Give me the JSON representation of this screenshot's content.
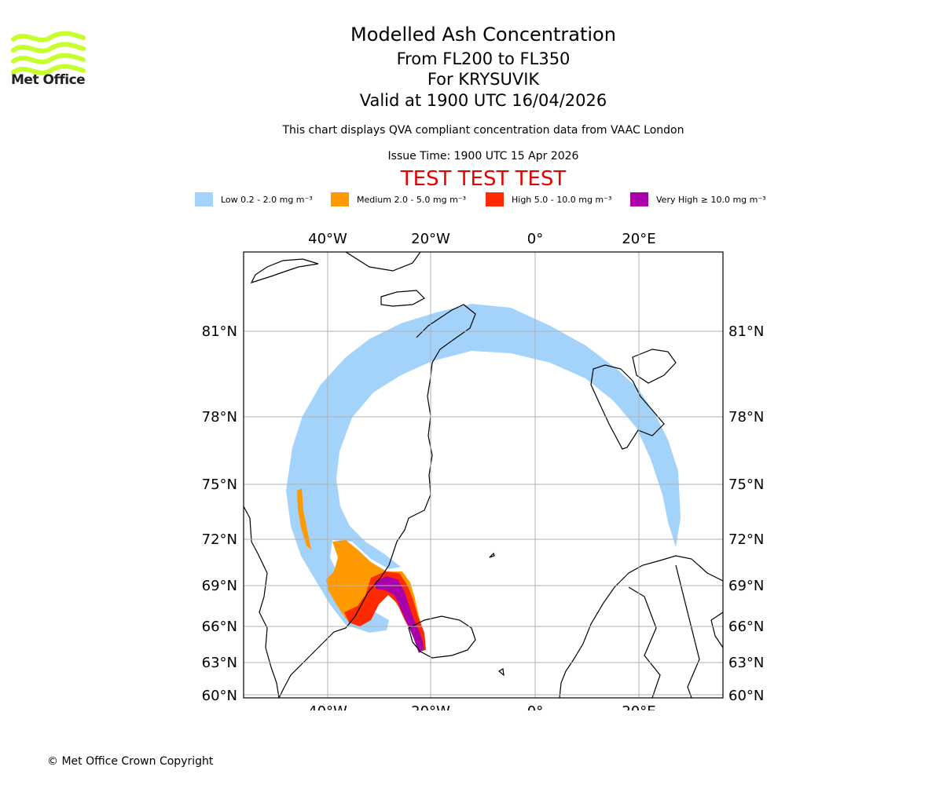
{
  "logo": {
    "name": "Met Office",
    "icon": "met-office-wave-logo",
    "color": "#c6ff2e"
  },
  "header": {
    "title": "Modelled Ash Concentration",
    "levels": "From FL200 to FL350",
    "volcano": "For KRYSUVIK",
    "valid": "Valid at 1900 UTC 16/04/2026",
    "subtitle": "This chart displays QVA compliant concentration data from VAAC London",
    "issue_time": "Issue Time: 1900 UTC 15 Apr 2026",
    "test_banner": "TEST TEST TEST"
  },
  "legend": [
    {
      "label": "Low 0.2 - 2.0 mg m⁻³",
      "color": "#a3d3fa"
    },
    {
      "label": "Medium 2.0 - 5.0 mg m⁻³",
      "color": "#ff9900"
    },
    {
      "label": "High 5.0 - 10.0 mg m⁻³",
      "color": "#ff2a00"
    },
    {
      "label": "Very High  ≥  10.0 mg m⁻³",
      "color": "#aa00aa"
    }
  ],
  "map": {
    "lon_labels": [
      "40°W",
      "20°W",
      "0°",
      "20°E"
    ],
    "lat_labels": [
      "81°N",
      "78°N",
      "75°N",
      "72°N",
      "69°N",
      "66°N",
      "63°N",
      "60°N"
    ],
    "gridlines": true
  },
  "footer": {
    "copyright": "© Met Office Crown Copyright"
  }
}
